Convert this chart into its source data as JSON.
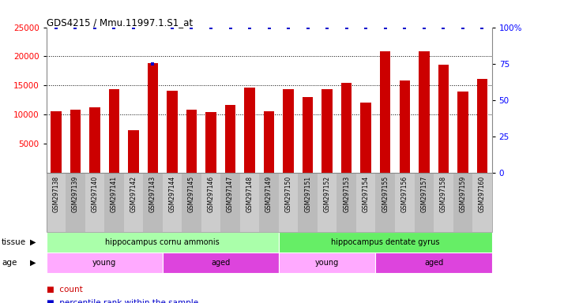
{
  "title": "GDS4215 / Mmu.11997.1.S1_at",
  "samples": [
    "GSM297138",
    "GSM297139",
    "GSM297140",
    "GSM297141",
    "GSM297142",
    "GSM297143",
    "GSM297144",
    "GSM297145",
    "GSM297146",
    "GSM297147",
    "GSM297148",
    "GSM297149",
    "GSM297150",
    "GSM297151",
    "GSM297152",
    "GSM297153",
    "GSM297154",
    "GSM297155",
    "GSM297156",
    "GSM297157",
    "GSM297158",
    "GSM297159",
    "GSM297160"
  ],
  "counts": [
    10500,
    10900,
    11300,
    14400,
    7300,
    18800,
    14100,
    10900,
    10400,
    11700,
    14600,
    10600,
    14400,
    13000,
    14400,
    15500,
    12100,
    20900,
    15900,
    20900,
    18500,
    14000,
    16100
  ],
  "percentile": [
    100,
    100,
    100,
    100,
    100,
    75,
    100,
    100,
    100,
    100,
    100,
    100,
    100,
    100,
    100,
    100,
    100,
    100,
    100,
    100,
    100,
    100,
    100
  ],
  "bar_color": "#cc0000",
  "dot_color": "#0000cc",
  "ylim_left": [
    0,
    25000
  ],
  "ylim_right": [
    0,
    100
  ],
  "yticks_left": [
    5000,
    10000,
    15000,
    20000,
    25000
  ],
  "yticks_right": [
    0,
    25,
    50,
    75,
    100
  ],
  "tissue_groups": [
    {
      "label": "hippocampus cornu ammonis",
      "start": 0,
      "end": 12,
      "color": "#aaffaa"
    },
    {
      "label": "hippocampus dentate gyrus",
      "start": 12,
      "end": 23,
      "color": "#66ee66"
    }
  ],
  "age_groups": [
    {
      "label": "young",
      "start": 0,
      "end": 6,
      "color": "#ffaaff"
    },
    {
      "label": "aged",
      "start": 6,
      "end": 12,
      "color": "#dd44dd"
    },
    {
      "label": "young",
      "start": 12,
      "end": 17,
      "color": "#ffaaff"
    },
    {
      "label": "aged",
      "start": 17,
      "end": 23,
      "color": "#dd44dd"
    }
  ],
  "bg_color": "#ffffff",
  "tick_area_color": "#cccccc",
  "tick_area_color_alt": "#bbbbbb"
}
